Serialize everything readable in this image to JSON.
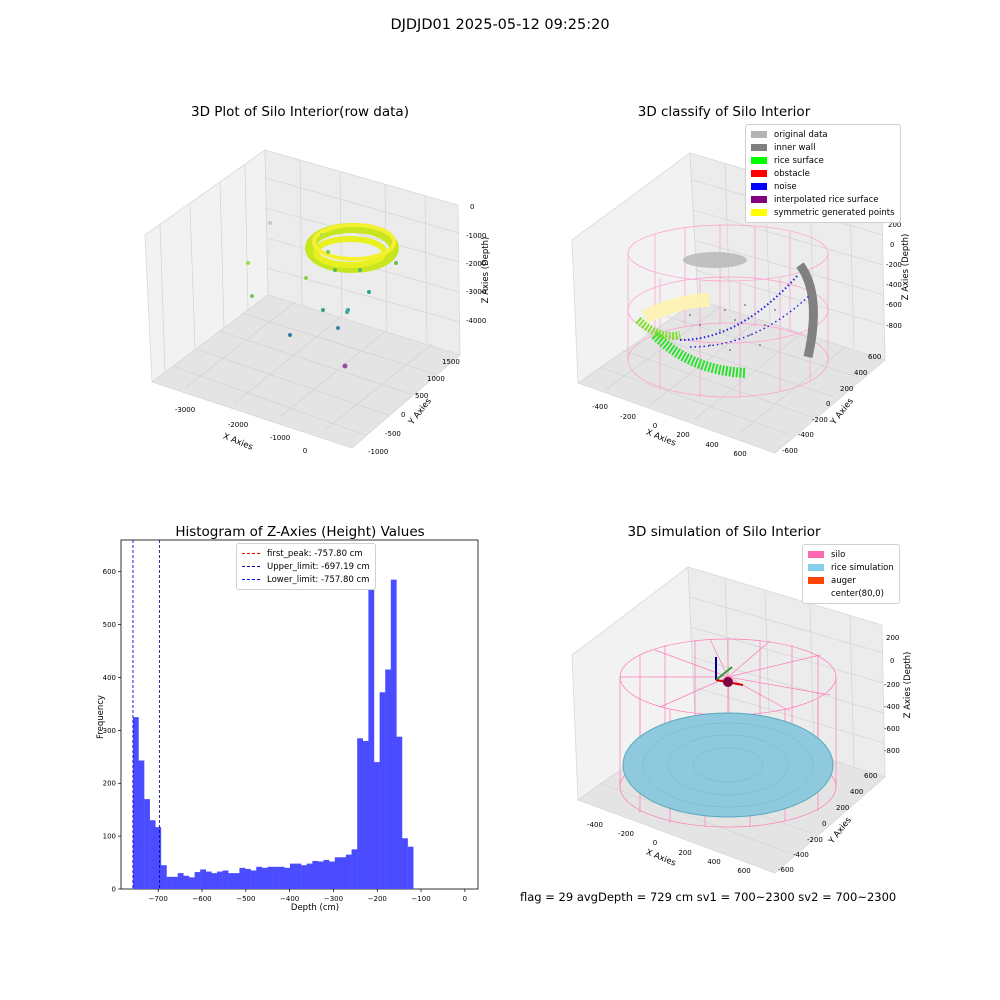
{
  "figure_title": "DJDJD01 2025-05-12 09:25:20",
  "footer_text": "flag = 29  avgDepth = 729 cm  sv1 = 700~2300  sv2 = 700~2300",
  "chart_data": [
    {
      "type": "scatter3d",
      "title": "3D Plot of Silo Interior(row data)",
      "xlabel": "X Axies",
      "ylabel": "Y Axies",
      "zlabel": "Z Axies (Depth)",
      "x_ticks": [
        "-3000",
        "-2000",
        "-1000",
        "0"
      ],
      "y_ticks": [
        "-1000",
        "-500",
        "0",
        "500",
        "1000",
        "1500"
      ],
      "z_ticks": [
        "0",
        "-1000",
        "-2000",
        "-3000",
        "-4000"
      ],
      "colormap": "viridis"
    },
    {
      "type": "scatter3d",
      "title": "3D classify of Silo Interior",
      "xlabel": "X Axies",
      "ylabel": "Y Axies",
      "zlabel": "Z Axies (Depth)",
      "x_ticks": [
        "-400",
        "-200",
        "0",
        "200",
        "400",
        "600"
      ],
      "y_ticks": [
        "-600",
        "-400",
        "-200",
        "0",
        "200",
        "400",
        "600"
      ],
      "z_ticks": [
        "200",
        "0",
        "-200",
        "-400",
        "-600",
        "-800"
      ],
      "legend": [
        {
          "label": "original data",
          "color": "#b3b3b3"
        },
        {
          "label": "inner wall",
          "color": "#808080"
        },
        {
          "label": "rice surface",
          "color": "#00ff00"
        },
        {
          "label": "obstacle",
          "color": "#ff0000"
        },
        {
          "label": "noise",
          "color": "#0000ff"
        },
        {
          "label": "interpolated rice surface",
          "color": "#800080"
        },
        {
          "label": "symmetric generated points",
          "color": "#ffff00"
        }
      ]
    },
    {
      "type": "bar",
      "title": "Histogram of Z-Axies (Height) Values",
      "xlabel": "Depth (cm)",
      "ylabel": "Frequency",
      "xlim": [
        -785,
        30
      ],
      "ylim": [
        0,
        660
      ],
      "bin_width": 12.8,
      "bin_start": -757.8,
      "values": [
        325,
        243,
        170,
        130,
        117,
        45,
        23,
        23,
        30,
        25,
        22,
        32,
        37,
        33,
        30,
        33,
        35,
        30,
        30,
        40,
        38,
        35,
        42,
        40,
        42,
        42,
        42,
        40,
        48,
        48,
        45,
        48,
        53,
        52,
        55,
        52,
        60,
        60,
        65,
        75,
        285,
        280,
        630,
        240,
        372,
        415,
        585,
        288,
        96,
        80
      ],
      "x_ticks": [
        -700,
        -600,
        -500,
        -400,
        -300,
        -200,
        -100,
        0
      ],
      "y_ticks": [
        0,
        100,
        200,
        300,
        400,
        500,
        600
      ],
      "bar_color": "#4b4bff",
      "lines": [
        {
          "label": "first_peak: -757.80 cm",
          "x": -757.8,
          "color": "red"
        },
        {
          "label": "Upper_limit: -697.19 cm",
          "x": -697.19,
          "color": "#00008b"
        },
        {
          "label": "Lower_limit: -757.80 cm",
          "x": -757.8,
          "color": "#0000ff"
        }
      ]
    },
    {
      "type": "surface3d",
      "title": "3D simulation of Silo Interior",
      "xlabel": "X Axies",
      "ylabel": "Y Axies",
      "zlabel": "Z Axies (Depth)",
      "x_ticks": [
        "-400",
        "-200",
        "0",
        "200",
        "400",
        "600"
      ],
      "y_ticks": [
        "-600",
        "-400",
        "-200",
        "0",
        "200",
        "400",
        "600"
      ],
      "z_ticks": [
        "200",
        "0",
        "-200",
        "-400",
        "-600",
        "-800"
      ],
      "legend": [
        {
          "label": "silo",
          "color": "#ff69b4"
        },
        {
          "label": "rice simulation",
          "color": "#87ceeb"
        },
        {
          "label": "auger",
          "color": "#ff4500"
        },
        {
          "label": "center(80,0)",
          "color": ""
        }
      ]
    }
  ]
}
